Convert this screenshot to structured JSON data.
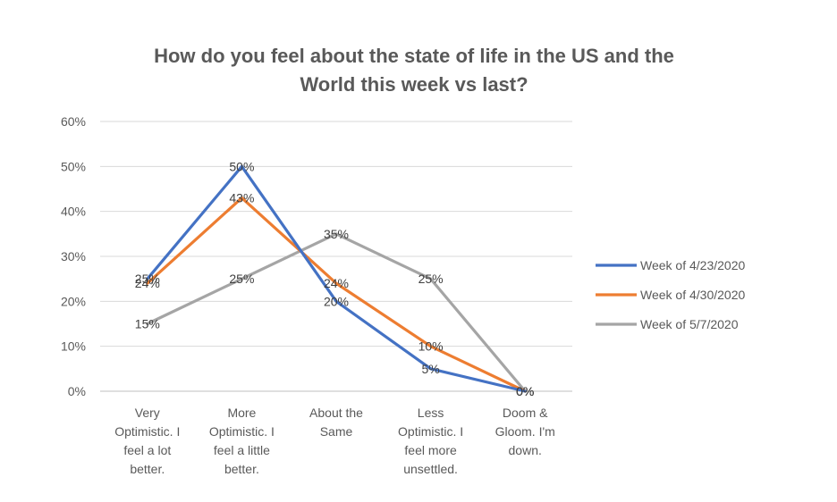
{
  "chart_data": {
    "type": "line",
    "title_lines": [
      "How do you feel about the state of life in the US and the",
      "World this week vs last?"
    ],
    "categories": [
      [
        "Very",
        "Optimistic. I",
        "feel a lot",
        "better."
      ],
      [
        "More",
        "Optimistic. I",
        "feel a little",
        "better."
      ],
      [
        "About the",
        "Same"
      ],
      [
        "Less",
        "Optimistic. I",
        "feel more",
        "unsettled."
      ],
      [
        "Doom &",
        "Gloom. I'm",
        "down."
      ]
    ],
    "y_ticks": [
      "0%",
      "10%",
      "20%",
      "30%",
      "40%",
      "50%",
      "60%"
    ],
    "ylim": [
      0,
      60
    ],
    "grid": true,
    "legend_position": "right",
    "series": [
      {
        "name": "Week of 4/23/2020",
        "color": "#4472C4",
        "values": [
          25,
          50,
          20,
          5,
          0
        ],
        "labels": [
          "25%",
          "50%",
          "20%",
          "5%",
          "0%"
        ]
      },
      {
        "name": "Week of 4/30/2020",
        "color": "#ED7D31",
        "values": [
          24,
          43,
          24,
          10,
          0
        ],
        "labels": [
          "24%",
          "43%",
          "24%",
          "10%",
          "0%"
        ]
      },
      {
        "name": "Week of 5/7/2020",
        "color": "#A5A5A5",
        "values": [
          15,
          25,
          35,
          25,
          0
        ],
        "labels": [
          "15%",
          "25%",
          "35%",
          "25%",
          "0%"
        ]
      }
    ]
  }
}
